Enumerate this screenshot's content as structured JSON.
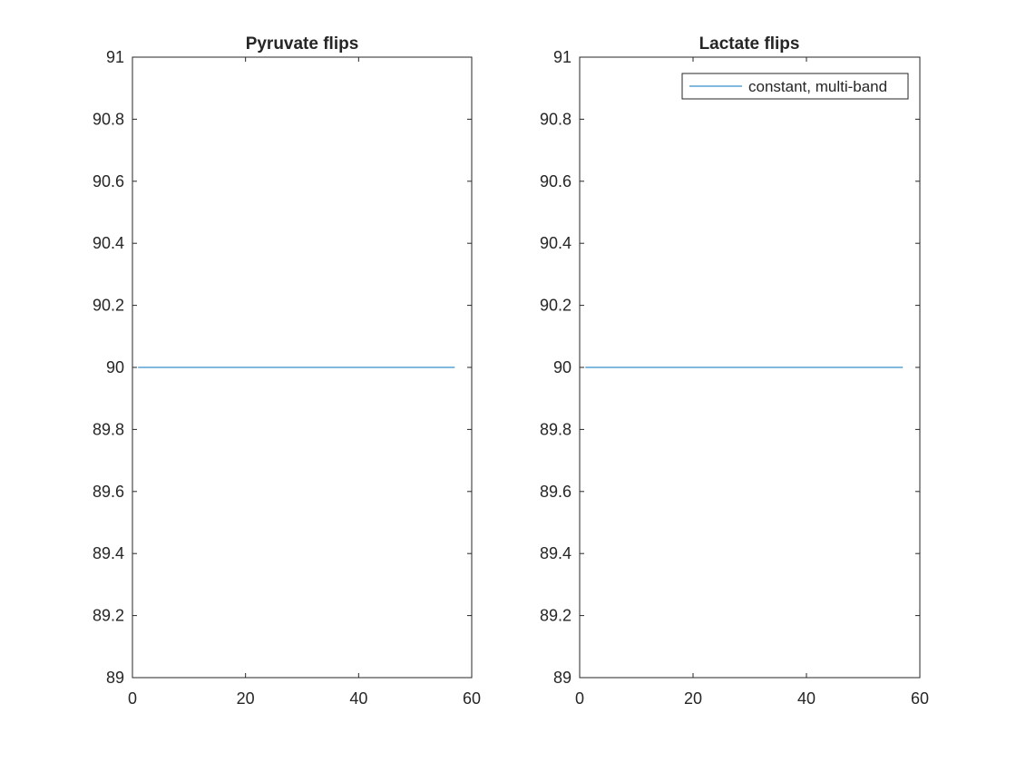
{
  "figure": {
    "background": "#ffffff",
    "axis_color": "#262626",
    "line_color": "#0072BD"
  },
  "chart_data": [
    {
      "type": "line",
      "title": "Pyruvate flips",
      "xlabel": "",
      "ylabel": "",
      "xlim": [
        0,
        60
      ],
      "ylim": [
        89,
        91
      ],
      "xticks": [
        0,
        20,
        40,
        60
      ],
      "yticks": [
        89,
        89.2,
        89.4,
        89.6,
        89.8,
        90,
        90.2,
        90.4,
        90.6,
        90.8,
        91
      ],
      "xtick_labels": [
        "0",
        "20",
        "40",
        "60"
      ],
      "ytick_labels": [
        "89",
        "89.2",
        "89.4",
        "89.6",
        "89.8",
        "90",
        "90.2",
        "90.4",
        "90.6",
        "90.8",
        "91"
      ],
      "grid": false,
      "legend": null,
      "series": [
        {
          "color": "#0072BD",
          "x": [
            1,
            57
          ],
          "y": [
            90,
            90
          ]
        }
      ]
    },
    {
      "type": "line",
      "title": "Lactate flips",
      "xlabel": "",
      "ylabel": "",
      "xlim": [
        0,
        60
      ],
      "ylim": [
        89,
        91
      ],
      "xticks": [
        0,
        20,
        40,
        60
      ],
      "yticks": [
        89,
        89.2,
        89.4,
        89.6,
        89.8,
        90,
        90.2,
        90.4,
        90.6,
        90.8,
        91
      ],
      "xtick_labels": [
        "0",
        "20",
        "40",
        "60"
      ],
      "ytick_labels": [
        "89",
        "89.2",
        "89.4",
        "89.6",
        "89.8",
        "90",
        "90.2",
        "90.4",
        "90.6",
        "90.8",
        "91"
      ],
      "grid": false,
      "legend": "top-right",
      "series": [
        {
          "name": "constant, multi-band",
          "color": "#0072BD",
          "x": [
            1,
            57
          ],
          "y": [
            90,
            90
          ]
        }
      ]
    }
  ]
}
